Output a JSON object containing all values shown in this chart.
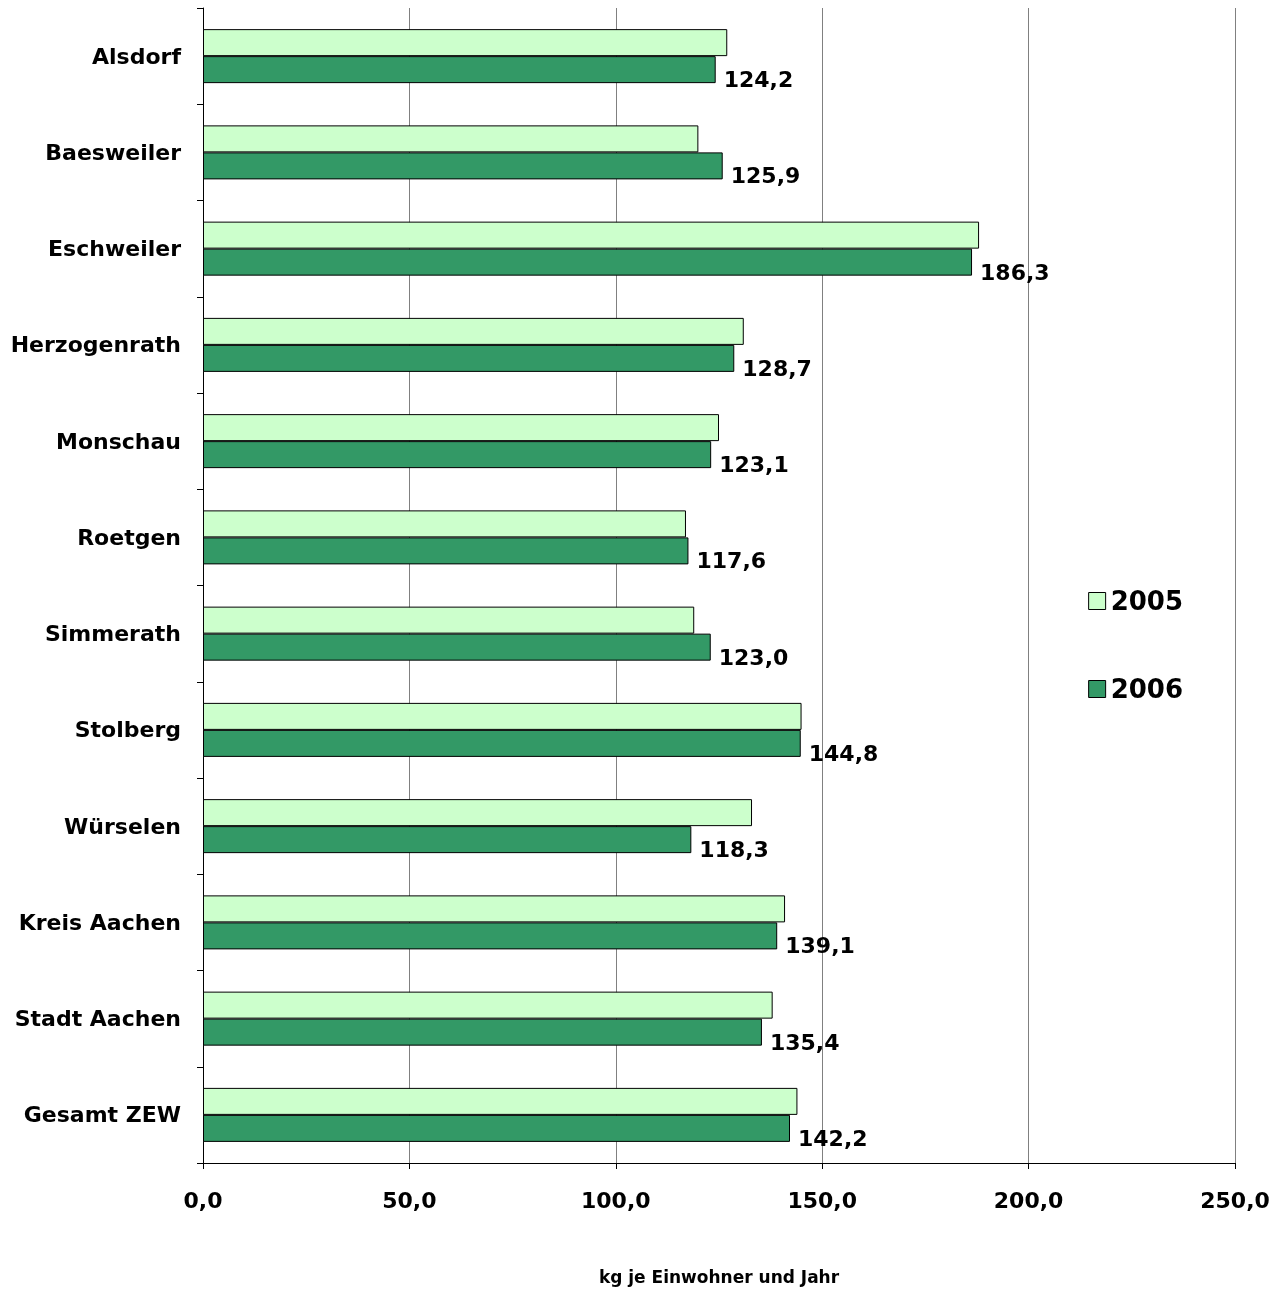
{
  "chart_data": {
    "type": "bar",
    "orientation": "horizontal",
    "xlabel": "kg je Einwohner und Jahr",
    "categories": [
      "Alsdorf",
      "Baesweiler",
      "Eschweiler",
      "Herzogenrath",
      "Monschau",
      "Roetgen",
      "Simmerath",
      "Stolberg",
      "Würselen",
      "Kreis Aachen",
      "Stadt Aachen",
      "Gesamt ZEW"
    ],
    "series": [
      {
        "name": "2005",
        "color": "#ccffcc",
        "values": [
          127,
          120,
          188,
          131,
          125,
          117,
          119,
          145,
          133,
          141,
          138,
          144
        ]
      },
      {
        "name": "2006",
        "color": "#339966",
        "values": [
          124.2,
          125.9,
          186.3,
          128.7,
          123.1,
          117.6,
          123.0,
          144.8,
          118.3,
          139.1,
          135.4,
          142.2
        ],
        "value_labels": [
          "124,2",
          "125,9",
          "186,3",
          "128,7",
          "123,1",
          "117,6",
          "123,0",
          "144,8",
          "118,3",
          "139,1",
          "135,4",
          "142,2"
        ]
      }
    ],
    "xlim": [
      0,
      250
    ],
    "xticks": [
      {
        "value": 0,
        "label": "0,0"
      },
      {
        "value": 50,
        "label": "50,0"
      },
      {
        "value": 100,
        "label": "100,0"
      },
      {
        "value": 150,
        "label": "150,0"
      },
      {
        "value": 200,
        "label": "200,0"
      },
      {
        "value": 250,
        "label": "250,0"
      }
    ],
    "grid": "x",
    "legend": "right"
  }
}
